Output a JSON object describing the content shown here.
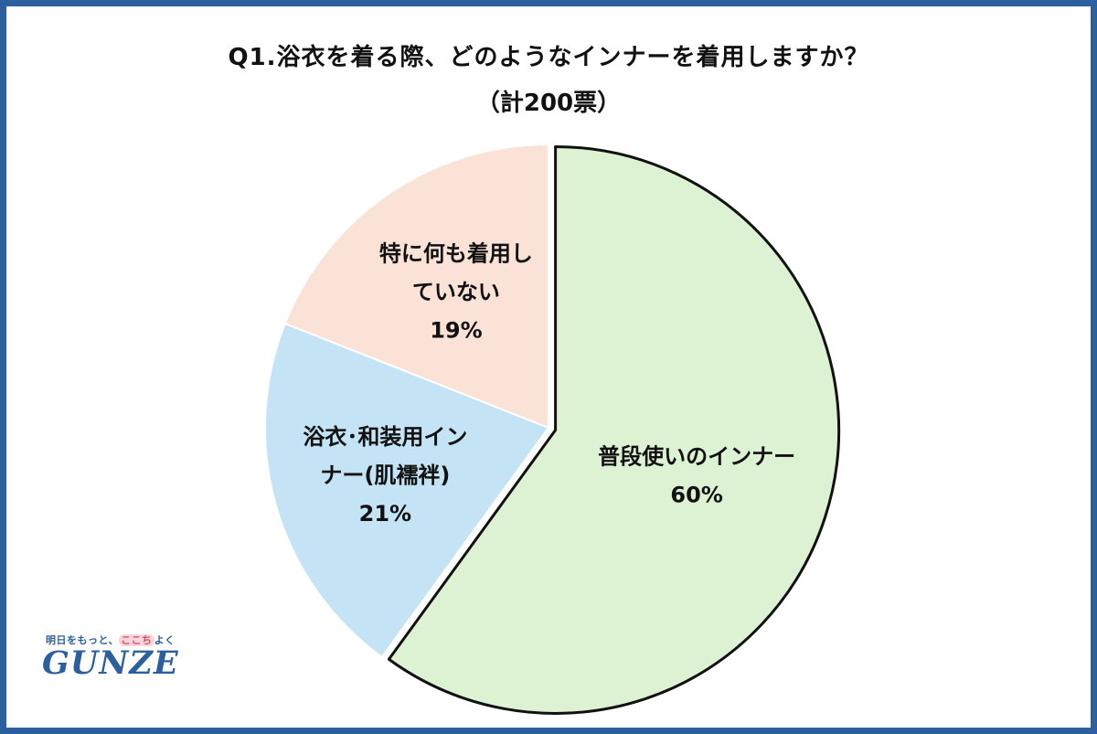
{
  "chart_data": {
    "type": "pie",
    "title": "Q1.浴衣を着る際、どのようなインナーを着用しますか？",
    "subtitle": "（計200票）",
    "slices": [
      {
        "label_lines": [
          "普段使いのインナー"
        ],
        "percent_label": "60%",
        "value": 60,
        "color": "#dcf2d2",
        "highlighted": true
      },
      {
        "label_lines": [
          "浴衣･和装用イン",
          "ナー(肌襦袢)"
        ],
        "percent_label": "21%",
        "value": 21,
        "color": "#c4e3f4",
        "highlighted": false
      },
      {
        "label_lines": [
          "特に何も着用し",
          "ていない"
        ],
        "percent_label": "19%",
        "value": 19,
        "color": "#fbe2d6",
        "highlighted": false
      }
    ],
    "start_angle_deg": 0,
    "direction": "clockwise"
  },
  "logo": {
    "tagline_prefix": "明日をもっと、",
    "tagline_highlight": "ここち",
    "tagline_suffix": "よく",
    "wordmark": "GUNZE"
  },
  "colors": {
    "frame": "#2b5f9e",
    "highlight_stroke": "#111111",
    "slice_stroke": "#ffffff"
  }
}
